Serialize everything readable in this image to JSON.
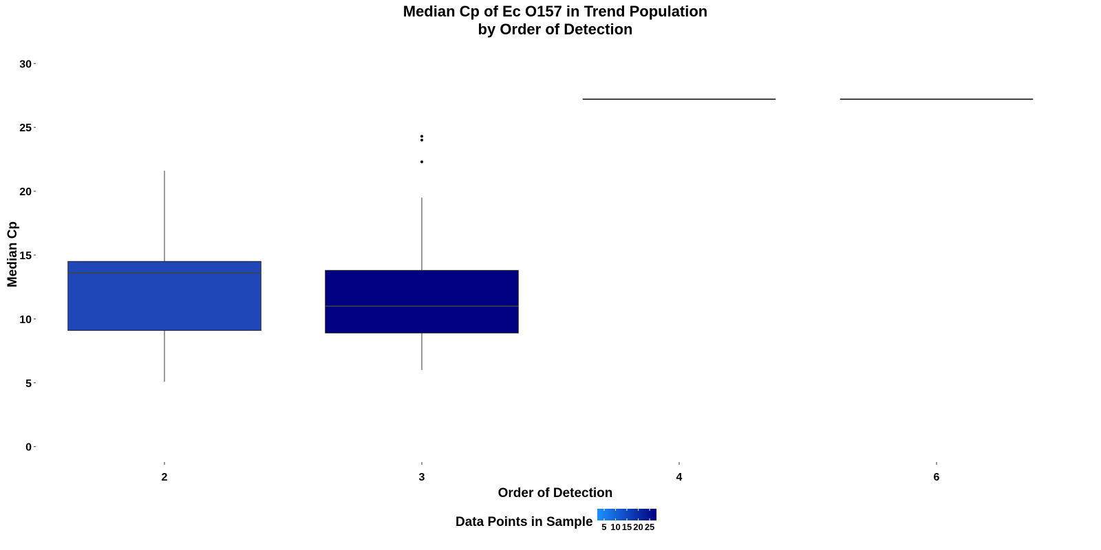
{
  "chart_data": {
    "type": "boxplot",
    "title": [
      "Median Cp of Ec O157 in Trend Population",
      "by Order of Detection"
    ],
    "xlabel": "Order of Detection",
    "ylabel": "Median Cp",
    "categories": [
      "2",
      "3",
      "4",
      "6"
    ],
    "ylim": [
      -1.2,
      31.2
    ],
    "yticks": [
      0,
      5,
      10,
      15,
      20,
      25,
      30
    ],
    "grid": false,
    "boxes": [
      {
        "category": "2",
        "min": 5.1,
        "q1": 9.1,
        "median": 13.6,
        "q3": 14.5,
        "max": 21.6,
        "outliers": [],
        "fill": "#1f47b8"
      },
      {
        "category": "3",
        "min": 6.0,
        "q1": 8.9,
        "median": 11.0,
        "q3": 13.8,
        "max": 19.5,
        "outliers": [
          22.3,
          24.0,
          24.3
        ],
        "fill": "#000080"
      },
      {
        "category": "4",
        "min": 27.2,
        "q1": 27.2,
        "median": 27.2,
        "q3": 27.2,
        "max": 27.2,
        "outliers": [],
        "fill": "#000080"
      },
      {
        "category": "6",
        "min": 27.2,
        "q1": 27.2,
        "median": 27.2,
        "q3": 27.2,
        "max": 27.2,
        "outliers": [],
        "fill": "#000080"
      }
    ],
    "legend": {
      "title": "Data Points in Sample",
      "position": "bottom",
      "range": [
        2,
        28
      ],
      "ticks": [
        5,
        10,
        15,
        20,
        25
      ],
      "tick_labels": [
        "5",
        "10",
        "15",
        "20",
        "25"
      ],
      "color_low": "#1e90ff",
      "color_high": "#000080"
    }
  }
}
